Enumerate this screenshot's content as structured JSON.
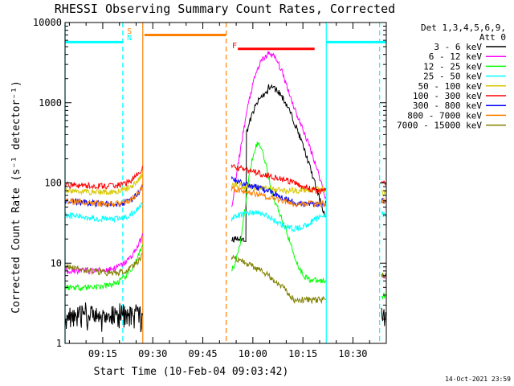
{
  "chart_data": {
    "type": "line",
    "title": "RHESSI Observing Summary Count Rates, Corrected",
    "xlabel": "Start Time (10-Feb-04 09:03:42)",
    "ylabel": "Corrected Count Rate (s⁻¹ detector⁻¹)",
    "yscale": "log",
    "ylim": [
      1,
      10000
    ],
    "xlim": [
      "09:03:42",
      "10:40:00"
    ],
    "x_ticks": [
      "09:15",
      "09:30",
      "09:45",
      "10:00",
      "10:15",
      "10:30"
    ],
    "y_ticks": [
      "1",
      "10",
      "100",
      "1000",
      "10000"
    ],
    "legend_position": "right",
    "legend_header": [
      "Det 1,3,4,5,6,9,",
      "Att 0"
    ],
    "timestamp": "14-Oct-2021 23:59",
    "flags": [
      {
        "label": "S",
        "color": "#ff8000"
      },
      {
        "label": "N",
        "color": "#00ffff"
      },
      {
        "label": "F",
        "color": "#ff0000"
      }
    ],
    "series": [
      {
        "name": "3 - 6 keV",
        "color": "#000000"
      },
      {
        "name": "6 - 12 keV",
        "color": "#ff00ff"
      },
      {
        "name": "12 - 25 keV",
        "color": "#00ff00"
      },
      {
        "name": "25 - 50 keV",
        "color": "#00ffff"
      },
      {
        "name": "50 - 100 keV",
        "color": "#d8c800"
      },
      {
        "name": "100 - 300 keV",
        "color": "#ff0000"
      },
      {
        "name": "300 - 800 keV",
        "color": "#0000ff"
      },
      {
        "name": "800 - 7000 keV",
        "color": "#ff8000"
      },
      {
        "name": "7000 - 15000 keV",
        "color": "#808000"
      }
    ]
  }
}
